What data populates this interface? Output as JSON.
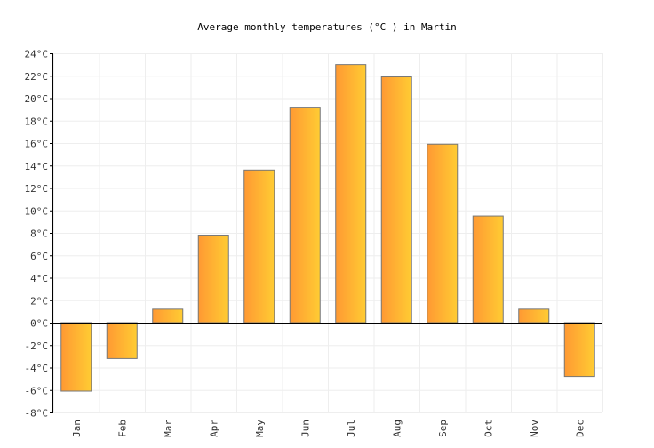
{
  "chart_data": {
    "type": "bar",
    "title": "Average monthly temperatures (°C ) in Martin",
    "xlabel": "",
    "ylabel": "",
    "categories": [
      "Jan",
      "Feb",
      "Mar",
      "Apr",
      "May",
      "Jun",
      "Jul",
      "Aug",
      "Sep",
      "Oct",
      "Nov",
      "Dec"
    ],
    "values": [
      -6.1,
      -3.2,
      1.2,
      7.8,
      13.6,
      19.2,
      23.0,
      21.9,
      15.9,
      9.5,
      1.2,
      -4.8
    ],
    "ylim": [
      -8,
      24
    ],
    "yticks": [
      -8,
      -6,
      -4,
      -2,
      0,
      2,
      4,
      6,
      8,
      10,
      12,
      14,
      16,
      18,
      20,
      22,
      24
    ],
    "ytick_suffix": "°C",
    "grid": true,
    "legend": "none",
    "colors": {
      "bar_start": "#ff9933",
      "bar_end": "#ffcc33",
      "bar_stroke": "#777777",
      "grid": "#eeeeee",
      "axis": "#000000"
    }
  }
}
